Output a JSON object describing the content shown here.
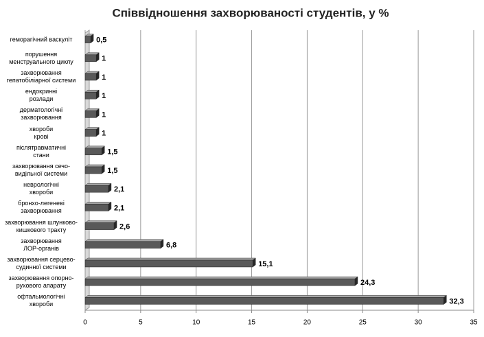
{
  "chart_data": {
    "type": "bar",
    "orientation": "horizontal",
    "title": "Співвідношення захворюваності студентів, у %",
    "categories": [
      "геморагічний васкуліт",
      "порушення\nменструального циклу",
      "захворювання\nгепатобіліарної системи",
      "ендокринні\nрозлади",
      "дерматологічні\nзахворювання",
      "хвороби\nкрові",
      "післятравматичні\nстани",
      "захворювання сечо-\nвидільної системи",
      "неврологічні\nхвороби",
      "бронхо-легеневі\nзахворювання",
      "захворювання шлунково-\nкишкового тракту",
      "захворювання\nЛОР-органів",
      "захворювання серцево-\nсудинної системи",
      "захворювання опорно-\nрухового апарату",
      "офтальмологічні\nхвороби"
    ],
    "values": [
      0.5,
      1,
      1,
      1,
      1,
      1,
      1.5,
      1.5,
      2.1,
      2.1,
      2.6,
      6.8,
      15.1,
      24.3,
      32.3
    ],
    "value_labels": [
      "0,5",
      "1",
      "1",
      "1",
      "1",
      "1",
      "1,5",
      "1,5",
      "2,1",
      "2,1",
      "2,6",
      "6,8",
      "15,1",
      "24,3",
      "32,3"
    ],
    "color": "#595959",
    "xlim": [
      0,
      35
    ],
    "xticks": [
      0,
      5,
      10,
      15,
      20,
      25,
      30,
      35
    ],
    "grid": true
  }
}
